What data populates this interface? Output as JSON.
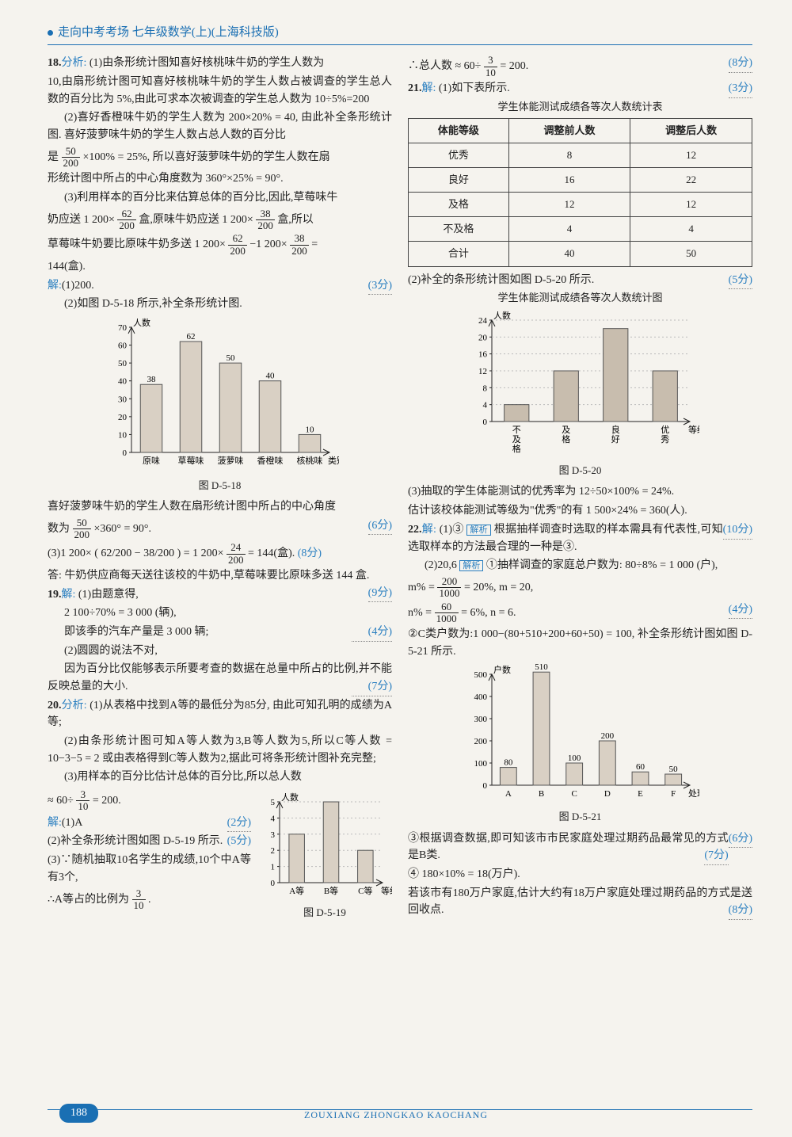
{
  "header": {
    "title": "走向中考考场  七年级数学(上)(上海科技版)"
  },
  "q18": {
    "label": "18.",
    "analysis": "分析:",
    "p1a": "(1)由条形统计图知喜好核桃味牛奶的学生人数为",
    "p1b": "10,由扇形统计图可知喜好核桃味牛奶的学生人数占被调查的学生总人数的百分比为 5%,由此可求本次被调查的学生总人数为 10÷5%=200",
    "p2a": "(2)喜好香橙味牛奶的学生人数为 200×20% = 40, 由此补全条形统计图. 喜好菠萝味牛奶的学生人数占总人数的百分比",
    "p2b": "是",
    "f1t": "50",
    "f1b": "200",
    "p2c": "×100% = 25%, 所以喜好菠萝味牛奶的学生人数在扇",
    "p2d": "形统计图中所占的中心角度数为 360°×25% = 90°.",
    "p3a": "(3)利用样本的百分比来估算总体的百分比,因此,草莓味牛",
    "p3b": "奶应送 1 200×",
    "f2t": "62",
    "f2b": "200",
    "p3c": "盒,原味牛奶应送 1 200×",
    "f3t": "38",
    "f3b": "200",
    "p3d": "盒,所以",
    "p3e": "草莓味牛奶要比原味牛奶多送 1 200×",
    "f4t": "62",
    "f4b": "200",
    "p3f": "−1 200×",
    "f5t": "38",
    "f5b": "200",
    "p3g": " =",
    "p3h": "144(盒).",
    "sol": "解:",
    "s1": "(1)200.",
    "sc1": "(3分)",
    "s2": "(2)如图 D-5-18 所示,补全条形统计图.",
    "chart1": {
      "ylabel": "人数",
      "xlabel": "类别",
      "ymax": 70,
      "ystep": 10,
      "cats": [
        "原味",
        "草莓味",
        "菠萝味",
        "香橙味",
        "核桃味"
      ],
      "vals": [
        38,
        62,
        50,
        40,
        10
      ],
      "caption": "图 D-5-18",
      "bar_color": "#d9d0c4",
      "text_color": "#222"
    },
    "s3a": "喜好菠萝味牛奶的学生人数在扇形统计图中所占的中心角度",
    "s3b": "数为",
    "f6t": "50",
    "f6b": "200",
    "s3c": "×360° = 90°.",
    "sc2": "(6分)",
    "s4": "(3)1 200×",
    "f7": "( 62/200 − 38/200 )",
    "s4b": "= 1 200×",
    "f8t": "24",
    "f8b": "200",
    "s4c": "= 144(盒).",
    "sc3": "(8分)",
    "ans": "答: 牛奶供应商每天送往该校的牛奶中,草莓味要比原味多送 144 盒.",
    "sc4": "(9分)"
  },
  "q19": {
    "label": "19.",
    "sol": "解:",
    "p1": "(1)由题意得,",
    "p2": "2 100÷70% = 3 000 (辆),",
    "p3": "即该季的汽车产量是 3 000 辆;",
    "sc1": "(4分)",
    "p4": "(2)圆圆的说法不对,",
    "p5": "因为百分比仅能够表示所要考查的数据在总量中所占的比例,并不能反映总量的大小.",
    "sc2": "(7分)"
  },
  "q20": {
    "label": "20.",
    "analysis": "分析:",
    "p1": "(1)从表格中找到A等的最低分为85分, 由此可知孔明的成绩为A等;",
    "p2": "(2)由条形统计图可知A等人数为3,B等人数为5,所以C等人数 = 10−3−5 = 2 或由表格得到C等人数为2,据此可将条形统计图补充完整;",
    "p3": "(3)用样本的百分比估计总体的百分比,所以总人数",
    "p4": "≈ 60÷",
    "f1t": "3",
    "f1b": "10",
    "p4b": " = 200.",
    "sol": "解:",
    "s1": "(1)A",
    "sc1": "(2分)",
    "s2": "(2)补全条形统计图如图 D-5-19 所示.",
    "sc2": "(5分)",
    "s3": "(3)∵随机抽取10名学生的成绩,10个中A等有3个,",
    "s4": "∴A等占的比例为",
    "f2t": "3",
    "f2b": "10",
    "s4b": ".",
    "chart2": {
      "ylabel": "人数",
      "xlabel": "等级",
      "cats": [
        "A等",
        "B等",
        "C等"
      ],
      "vals": [
        3,
        5,
        2
      ],
      "ymax": 5,
      "caption": "图 D-5-19",
      "bar_color": "#d9d0c4"
    }
  },
  "right_top": {
    "p1": "∴总人数 ≈ 60÷",
    "f1t": "3",
    "f1b": "10",
    "p1b": " = 200.",
    "sc1": "(8分)"
  },
  "q21": {
    "label": "21.",
    "sol": "解:",
    "s1": "(1)如下表所示.",
    "sc1": "(3分)",
    "tbl_title": "学生体能测试成绩各等次人数统计表",
    "tbl_head": [
      "体能等级",
      "调整前人数",
      "调整后人数"
    ],
    "tbl_rows": [
      [
        "优秀",
        "8",
        "12"
      ],
      [
        "良好",
        "16",
        "22"
      ],
      [
        "及格",
        "12",
        "12"
      ],
      [
        "不及格",
        "4",
        "4"
      ],
      [
        "合计",
        "40",
        "50"
      ]
    ],
    "s2": "(2)补全的条形统计图如图 D-5-20 所示.",
    "sc2": "(5分)",
    "chart3_title": "学生体能测试成绩各等次人数统计图",
    "chart3": {
      "ylabel": "人数",
      "xlabel": "等级",
      "cats": [
        "不及格",
        "及格",
        "良好",
        "优秀"
      ],
      "vals": [
        4,
        12,
        22,
        12
      ],
      "ymax": 24,
      "ystep": 4,
      "caption": "图 D-5-20",
      "bar_color": "#c8bdae"
    },
    "s3": "(3)抽取的学生体能测试的优秀率为 12÷50×100% = 24%.",
    "s4": "估计该校体能测试等级为\"优秀\"的有 1 500×24% = 360(人).",
    "sc3": "(10分)"
  },
  "q22": {
    "label": "22.",
    "sol": "解:",
    "s1": "(1)③",
    "tag1": "解析",
    "s1b": "根据抽样调查时选取的样本需具有代表性,可知选取样本的方法最合理的一种是③.",
    "s2": "(2)20,6",
    "tag2": "解析",
    "s2b": "①抽样调查的家庭总户数为: 80÷8% = 1 000 (户),",
    "s3": "m% =",
    "f1t": "200",
    "f1b": "1000",
    "s3b": " = 20%, m = 20,",
    "s4": "n% =",
    "f2t": "60",
    "f2b": "1000",
    "s4b": " = 6%, n = 6.",
    "sc1": "(4分)",
    "s5": "②C类户数为:1 000−(80+510+200+60+50) = 100, 补全条形统计图如图 D-5-21 所示.",
    "chart4": {
      "ylabel": "户数",
      "xlabel": "处理方式",
      "cats": [
        "A",
        "B",
        "C",
        "D",
        "E",
        "F"
      ],
      "vals": [
        80,
        510,
        100,
        200,
        60,
        50
      ],
      "ymax": 500,
      "ystep": 100,
      "caption": "图 D-5-21",
      "bar_color": "#d9d0c4"
    },
    "sc2": "(6分)",
    "s6": "③根据调查数据,即可知该市市民家庭处理过期药品最常见的方式是B类.",
    "sc3": "(7分)",
    "s7": "④ 180×10% = 18(万户).",
    "s8": "若该市有180万户家庭,估计大约有18万户家庭处理过期药品的方式是送回收点.",
    "sc4": "(8分)"
  },
  "footer": {
    "page": "188",
    "pinyin": "ZOUXIANG ZHONGKAO KAOCHANG"
  }
}
